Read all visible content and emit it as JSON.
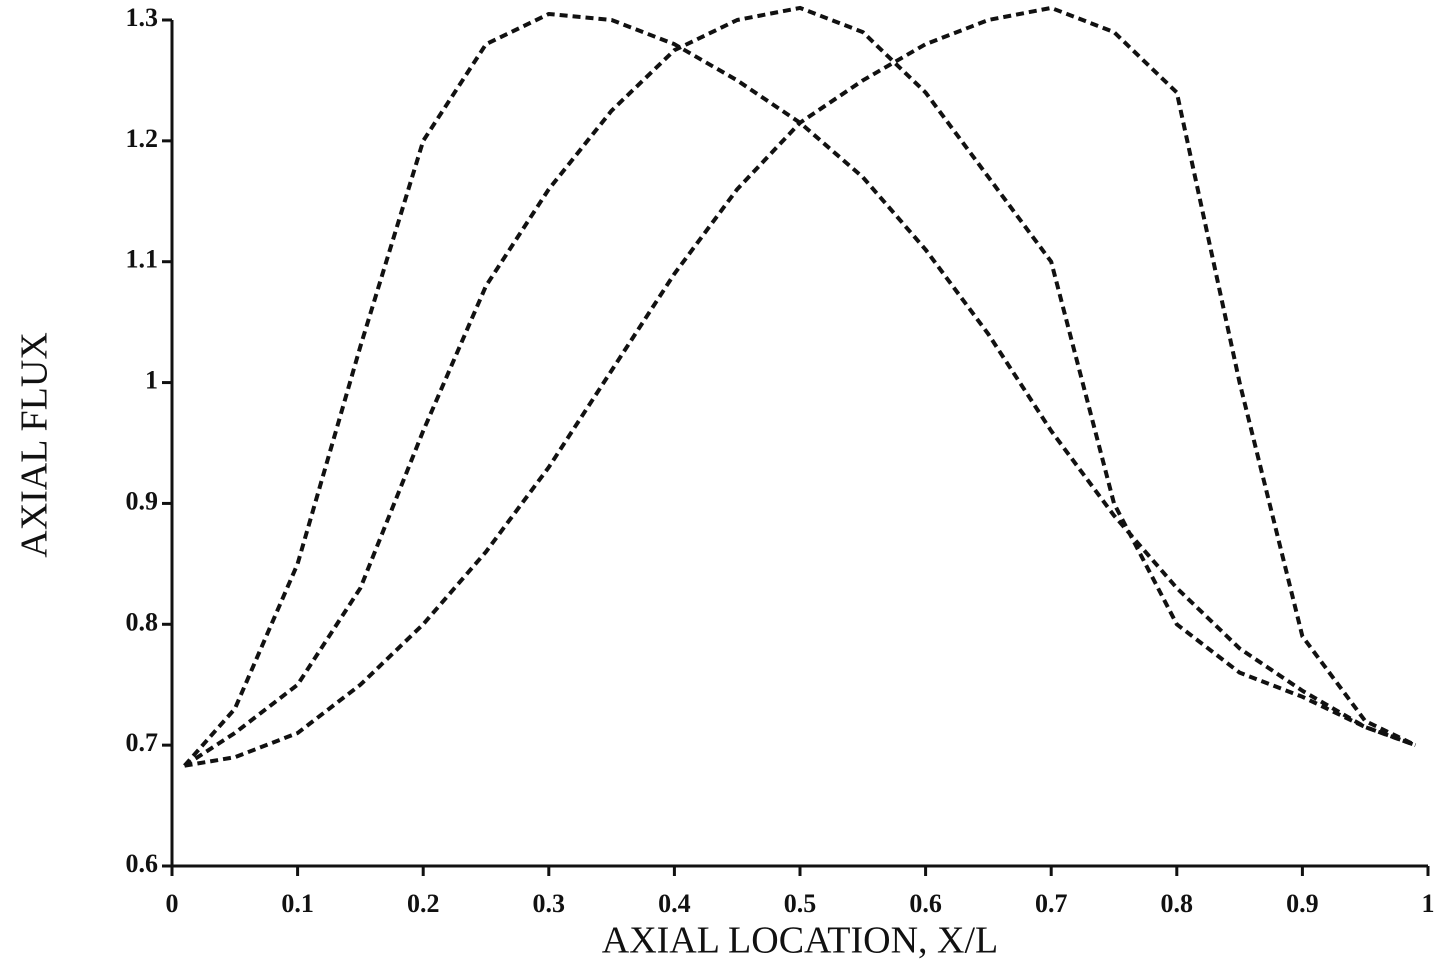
{
  "chart_data": {
    "type": "line",
    "x_label": "AXIAL LOCATION, X/L",
    "y_label": "AXIAL FLUX",
    "x": [
      0.01,
      0.05,
      0.1,
      0.15,
      0.2,
      0.25,
      0.3,
      0.35,
      0.4,
      0.45,
      0.5,
      0.55,
      0.6,
      0.65,
      0.7,
      0.75,
      0.8,
      0.85,
      0.9,
      0.95,
      0.99
    ],
    "series": [
      {
        "color": "#111111",
        "values": [
          0.683,
          0.73,
          0.85,
          1.03,
          1.2,
          1.28,
          1.305,
          1.3,
          1.28,
          1.25,
          1.215,
          1.17,
          1.11,
          1.04,
          0.96,
          0.89,
          0.83,
          0.78,
          0.745,
          0.715,
          0.7
        ]
      },
      {
        "color": "#111111",
        "values": [
          0.683,
          0.71,
          0.75,
          0.83,
          0.96,
          1.08,
          1.16,
          1.225,
          1.275,
          1.3,
          1.31,
          1.29,
          1.24,
          1.17,
          1.1,
          0.9,
          0.8,
          0.76,
          0.74,
          0.715,
          0.7
        ]
      },
      {
        "color": "#111111",
        "values": [
          0.683,
          0.69,
          0.71,
          0.75,
          0.8,
          0.86,
          0.93,
          1.01,
          1.09,
          1.16,
          1.215,
          1.25,
          1.28,
          1.3,
          1.31,
          1.29,
          1.24,
          1.0,
          0.79,
          0.72,
          0.7
        ]
      }
    ],
    "xlim": [
      0,
      1
    ],
    "xticks": [
      0,
      0.1,
      0.2,
      0.3,
      0.4,
      0.5,
      0.6,
      0.7,
      0.8,
      0.9,
      1
    ],
    "ylim": [
      0.6,
      1.3
    ],
    "yticks": [
      0.6,
      0.7,
      0.8,
      0.9,
      1,
      1.1,
      1.2,
      1.3
    ],
    "dashed": true
  }
}
